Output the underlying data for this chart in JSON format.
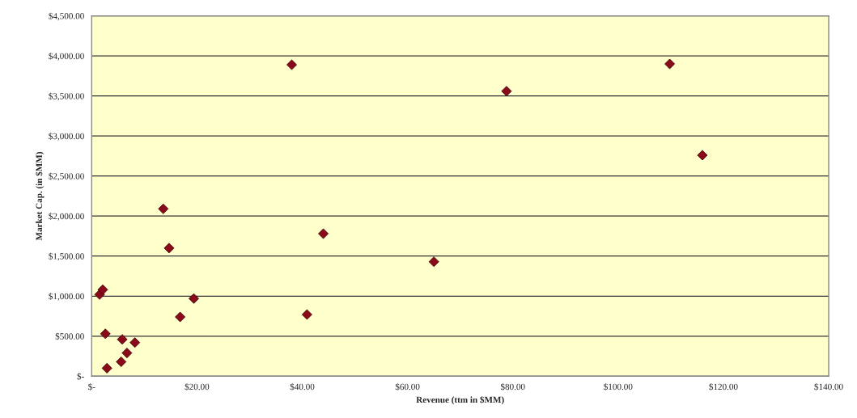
{
  "chart_data": {
    "type": "scatter",
    "xlabel": "Revenue (ttm in $MM)",
    "ylabel": "Market Cap. (in $MM)",
    "x": [
      1.5,
      2.1,
      2.6,
      2.9,
      5.6,
      5.8,
      6.7,
      8.2,
      13.6,
      14.7,
      16.8,
      19.4,
      38.0,
      40.9,
      44.0,
      65.0,
      78.8,
      109.8,
      116.0
    ],
    "series": [
      {
        "color": "#8b0a1a",
        "values": [
          1020,
          1080,
          530,
          100,
          180,
          460,
          290,
          420,
          2090,
          1600,
          740,
          970,
          3890,
          770,
          1780,
          1430,
          3560,
          3900,
          2760
        ]
      }
    ],
    "xlim": [
      0,
      140
    ],
    "xticks": [
      {
        "value": 0,
        "label": "$-"
      },
      {
        "value": 20,
        "label": "$20.00"
      },
      {
        "value": 40,
        "label": "$40.00"
      },
      {
        "value": 60,
        "label": "$60.00"
      },
      {
        "value": 80,
        "label": "$80.00"
      },
      {
        "value": 100,
        "label": "$100.00"
      },
      {
        "value": 120,
        "label": "$120.00"
      },
      {
        "value": 140,
        "label": "$140.00"
      }
    ],
    "ylim": [
      0,
      4500
    ],
    "yticks": [
      {
        "value": 0,
        "label": "$-"
      },
      {
        "value": 500,
        "label": "$500.00"
      },
      {
        "value": 1000,
        "label": "$1,000.00"
      },
      {
        "value": 1500,
        "label": "$1,500.00"
      },
      {
        "value": 2000,
        "label": "$2,000.00"
      },
      {
        "value": 2500,
        "label": "$2,500.00"
      },
      {
        "value": 3000,
        "label": "$3,000.00"
      },
      {
        "value": 3500,
        "label": "$3,500.00"
      },
      {
        "value": 4000,
        "label": "$4,000.00"
      },
      {
        "value": 4500,
        "label": "$4,500.00"
      }
    ],
    "grid": "y",
    "marker": "diamond"
  }
}
